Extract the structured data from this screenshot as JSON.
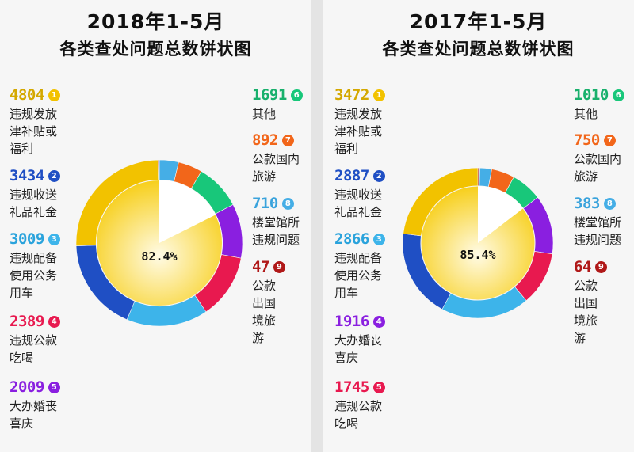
{
  "chart_data": [
    {
      "type": "pie",
      "title": "2018年1-5月",
      "subtitle": "各类查处问题总数饼状图",
      "center_label": "82.4%",
      "highlight_value": 82.4,
      "slices": [
        {
          "rank": "1",
          "value": 4804,
          "value_label": "4804",
          "label": "违规发放津补贴或福利",
          "color": "#f2c200"
        },
        {
          "rank": "2",
          "value": 3434,
          "value_label": "3434",
          "label": "违规收送礼品礼金",
          "color": "#1f4fc4"
        },
        {
          "rank": "3",
          "value": 3009,
          "value_label": "3009",
          "label": "违规配备使用公务用车",
          "color": "#3db4ea"
        },
        {
          "rank": "4",
          "value": 2389,
          "value_label": "2389",
          "label": "违规公款吃喝",
          "color": "#e8194f"
        },
        {
          "rank": "5",
          "value": 2009,
          "value_label": "2009",
          "label": "大办婚丧喜庆",
          "color": "#8a1fe0"
        },
        {
          "rank": "6",
          "value": 1691,
          "value_label": "1691",
          "label": "其他",
          "color": "#18c77a"
        },
        {
          "rank": "7",
          "value": 892,
          "value_label": "892",
          "label": "公款国内旅游",
          "color": "#f2661a"
        },
        {
          "rank": "8",
          "value": 710,
          "value_label": "710",
          "label": "楼堂馆所违规问题",
          "color": "#45aee6"
        },
        {
          "rank": "9",
          "value": 47,
          "value_label": "47",
          "label": "公款出国境旅游",
          "color": "#b01818"
        }
      ]
    },
    {
      "type": "pie",
      "title": "2017年1-5月",
      "subtitle": "各类查处问题总数饼状图",
      "center_label": "85.4%",
      "highlight_value": 85.4,
      "slices": [
        {
          "rank": "1",
          "value": 3472,
          "value_label": "3472",
          "label": "违规发放津补贴或福利",
          "color": "#f2c200"
        },
        {
          "rank": "2",
          "value": 2887,
          "value_label": "2887",
          "label": "违规收送礼品礼金",
          "color": "#1f4fc4"
        },
        {
          "rank": "3",
          "value": 2866,
          "value_label": "2866",
          "label": "违规配备使用公务用车",
          "color": "#3db4ea"
        },
        {
          "rank": "4",
          "value": 1916,
          "value_label": "1916",
          "label": "大办婚丧喜庆",
          "color": "#8a1fe0"
        },
        {
          "rank": "5",
          "value": 1745,
          "value_label": "1745",
          "label": "违规公款吃喝",
          "color": "#e8194f"
        },
        {
          "rank": "6",
          "value": 1010,
          "value_label": "1010",
          "label": "其他",
          "color": "#18c77a"
        },
        {
          "rank": "7",
          "value": 750,
          "value_label": "750",
          "label": "公款国内旅游",
          "color": "#f2661a"
        },
        {
          "rank": "8",
          "value": 383,
          "value_label": "383",
          "label": "楼堂馆所违规问题",
          "color": "#45aee6"
        },
        {
          "rank": "9",
          "value": 64,
          "value_label": "64",
          "label": "公款出国境旅游",
          "color": "#b01818"
        }
      ]
    }
  ]
}
